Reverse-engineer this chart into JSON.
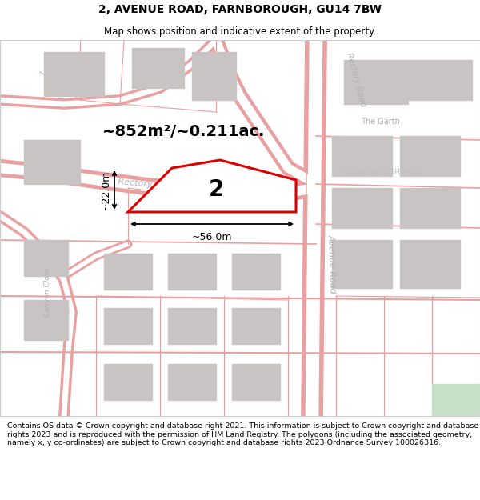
{
  "title": "2, AVENUE ROAD, FARNBOROUGH, GU14 7BW",
  "subtitle": "Map shows position and indicative extent of the property.",
  "area_text": "~852m²/~0.211ac.",
  "property_number": "2",
  "dim_width": "~56.0m",
  "dim_height": "~22.0m",
  "copyright_text": "Contains OS data © Crown copyright and database right 2021. This information is subject to Crown copyright and database rights 2023 and is reproduced with the permission of HM Land Registry. The polygons (including the associated geometry, namely x, y co-ordinates) are subject to Crown copyright and database rights 2023 Ordnance Survey 100026316.",
  "bg_color": "#ffffff",
  "map_bg": "#ffffff",
  "road_color": "#e8a0a0",
  "building_color": "#c8c4c4",
  "property_fill": "#ffffff",
  "property_edge": "#dd0000",
  "title_color": "#000000",
  "label_color": "#bbbbbb",
  "footer_color": "#000000",
  "green_patch": "#c8e0c8",
  "title_fontsize": 10,
  "subtitle_fontsize": 8.5,
  "area_fontsize": 14,
  "number_fontsize": 20,
  "label_fontsize": 7.5,
  "dim_fontsize": 9,
  "footer_fontsize": 6.8
}
